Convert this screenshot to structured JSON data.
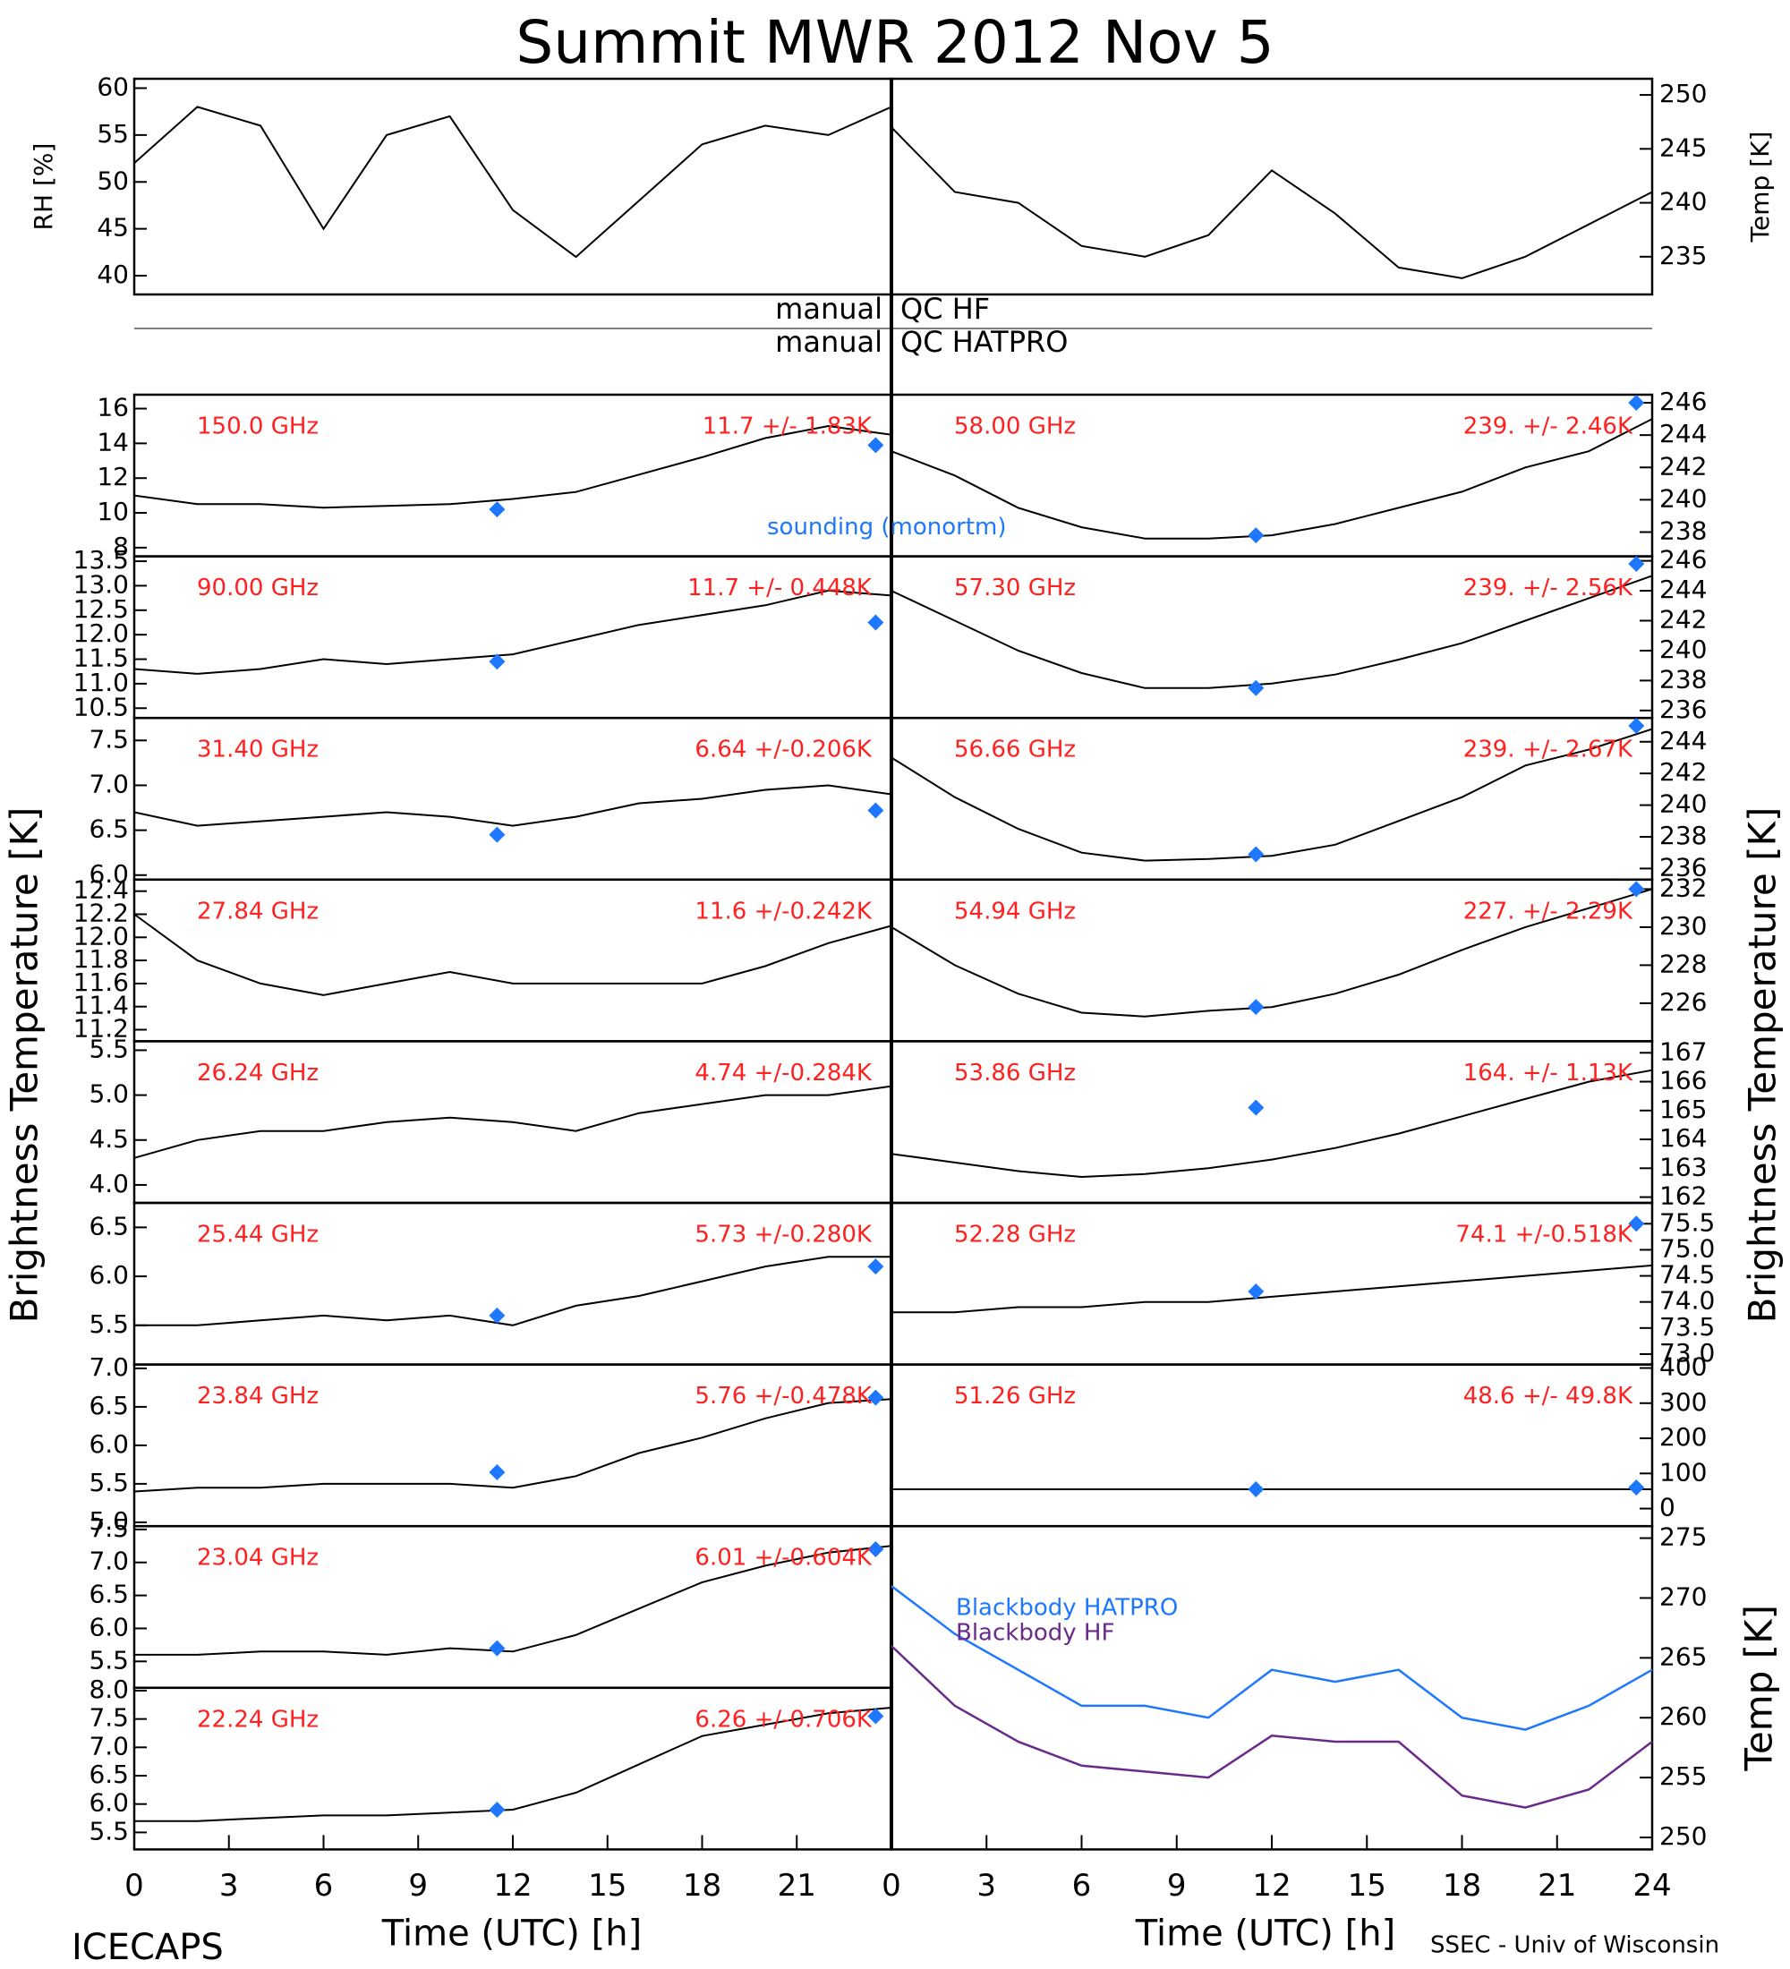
{
  "title": "Summit MWR 2012 Nov  5",
  "qc": {
    "left": [
      "manual",
      "manual"
    ],
    "right": [
      "QC HF",
      "QC HATPRO"
    ]
  },
  "y_label_left": "Brightness Temperature [K]",
  "y_label_right": "Brightness Temperature [K]",
  "footer_left": "ICECAPS",
  "footer_right": "SSEC - Univ of Wisconsin",
  "label_color": "#ff2020",
  "sounding_color": "#1e78ff",
  "chart_data": [
    {
      "type": "line",
      "ylabel": "RH [%]",
      "xlim": [
        0,
        24
      ],
      "ylim": [
        38,
        61
      ],
      "yticks": [
        40,
        45,
        50,
        55,
        60
      ],
      "x": [
        0,
        2,
        4,
        6,
        8,
        10,
        12,
        14,
        16,
        18,
        20,
        22,
        24
      ],
      "series": [
        {
          "color": "#000000",
          "values": [
            52,
            58,
            56,
            45,
            55,
            57,
            47,
            42,
            48,
            54,
            56,
            55,
            58
          ]
        }
      ]
    },
    {
      "type": "line",
      "ylabel": "Temp [K]",
      "xlim": [
        0,
        24
      ],
      "ylim": [
        231.5,
        251.5
      ],
      "yticks": [
        235,
        240,
        245,
        250
      ],
      "x": [
        0,
        2,
        4,
        6,
        8,
        10,
        12,
        14,
        16,
        18,
        20,
        22,
        24
      ],
      "series": [
        {
          "color": "#000000",
          "values": [
            247,
            241,
            240,
            236,
            235,
            237,
            243,
            239,
            234,
            233,
            235,
            238,
            241
          ]
        }
      ]
    },
    {
      "type": "line",
      "label": "150.0 GHz",
      "stats": "11.7 +/- 1.83K",
      "note": "sounding (monortm)",
      "xlim": [
        0,
        24
      ],
      "ylim": [
        7.5,
        16.8
      ],
      "yticks": [
        8,
        10,
        12,
        14,
        16
      ],
      "x": [
        0,
        2,
        4,
        6,
        8,
        10,
        12,
        14,
        16,
        18,
        20,
        22,
        24
      ],
      "series": [
        {
          "color": "#000000",
          "values": [
            11,
            10.5,
            10.5,
            10.3,
            10.4,
            10.5,
            10.8,
            11.2,
            12.2,
            13.2,
            14.3,
            15.0,
            14.5
          ]
        }
      ],
      "sounding": {
        "x": [
          11.5,
          23.5
        ],
        "values": [
          10.2,
          13.9
        ]
      }
    },
    {
      "type": "line",
      "label": "90.00 GHz",
      "stats": "11.7 +/- 0.448K",
      "xlim": [
        0,
        24
      ],
      "ylim": [
        10.3,
        13.6
      ],
      "yticks": [
        {
          "value": 10.5,
          "label": "10.5"
        },
        {
          "value": 11,
          "label": "11.0"
        },
        {
          "value": 11.5,
          "label": "11.5"
        },
        {
          "value": 12,
          "label": "12.0"
        },
        {
          "value": 12.5,
          "label": "12.5"
        },
        {
          "value": 13,
          "label": "13.0"
        },
        {
          "value": 13.5,
          "label": "13.5"
        }
      ],
      "x": [
        0,
        2,
        4,
        6,
        8,
        10,
        12,
        14,
        16,
        18,
        20,
        22,
        24
      ],
      "series": [
        {
          "color": "#000000",
          "values": [
            11.3,
            11.2,
            11.3,
            11.5,
            11.4,
            11.5,
            11.6,
            11.9,
            12.2,
            12.4,
            12.6,
            12.9,
            12.8
          ]
        }
      ],
      "sounding": {
        "x": [
          11.5,
          23.5
        ],
        "values": [
          11.45,
          12.25
        ]
      }
    },
    {
      "type": "line",
      "label": "31.40 GHz",
      "stats": "6.64 +/-0.206K",
      "xlim": [
        0,
        24
      ],
      "ylim": [
        5.95,
        7.75
      ],
      "yticks": [
        {
          "value": 6,
          "label": "6.0"
        },
        6.5,
        {
          "value": 7,
          "label": "7.0"
        },
        7.5
      ],
      "x": [
        0,
        2,
        4,
        6,
        8,
        10,
        12,
        14,
        16,
        18,
        20,
        22,
        24
      ],
      "series": [
        {
          "color": "#000000",
          "values": [
            6.7,
            6.55,
            6.6,
            6.65,
            6.7,
            6.65,
            6.55,
            6.65,
            6.8,
            6.85,
            6.95,
            7.0,
            6.9
          ]
        }
      ],
      "sounding": {
        "x": [
          11.5,
          23.5
        ],
        "values": [
          6.45,
          6.72
        ]
      }
    },
    {
      "type": "line",
      "label": "27.84 GHz",
      "stats": "11.6 +/-0.242K",
      "xlim": [
        0,
        24
      ],
      "ylim": [
        11.1,
        12.5
      ],
      "yticks": [
        11.2,
        11.4,
        11.6,
        11.8,
        {
          "value": 12,
          "label": "12.0"
        },
        12.2,
        12.4
      ],
      "x": [
        0,
        2,
        4,
        6,
        8,
        10,
        12,
        14,
        16,
        18,
        20,
        22,
        24
      ],
      "series": [
        {
          "color": "#000000",
          "values": [
            12.2,
            11.8,
            11.6,
            11.5,
            11.6,
            11.7,
            11.6,
            11.6,
            11.6,
            11.6,
            11.75,
            11.95,
            12.1
          ]
        }
      ]
    },
    {
      "type": "line",
      "label": "26.24 GHz",
      "stats": "4.74 +/-0.284K",
      "xlim": [
        0,
        24
      ],
      "ylim": [
        3.8,
        5.6
      ],
      "yticks": [
        {
          "value": 4,
          "label": "4.0"
        },
        4.5,
        {
          "value": 5,
          "label": "5.0"
        },
        5.5
      ],
      "x": [
        0,
        2,
        4,
        6,
        8,
        10,
        12,
        14,
        16,
        18,
        20,
        22,
        24
      ],
      "series": [
        {
          "color": "#000000",
          "values": [
            4.3,
            4.5,
            4.6,
            4.6,
            4.7,
            4.75,
            4.7,
            4.6,
            4.8,
            4.9,
            5.0,
            5.0,
            5.1
          ]
        }
      ]
    },
    {
      "type": "line",
      "label": "25.44 GHz",
      "stats": "5.73 +/-0.280K",
      "xlim": [
        0,
        24
      ],
      "ylim": [
        5.1,
        6.75
      ],
      "yticks": [
        5.5,
        {
          "value": 6,
          "label": "6.0"
        },
        6.5
      ],
      "x": [
        0,
        2,
        4,
        6,
        8,
        10,
        12,
        14,
        16,
        18,
        20,
        22,
        24
      ],
      "series": [
        {
          "color": "#000000",
          "values": [
            5.5,
            5.5,
            5.55,
            5.6,
            5.55,
            5.6,
            5.5,
            5.7,
            5.8,
            5.95,
            6.1,
            6.2,
            6.2
          ]
        }
      ],
      "sounding": {
        "x": [
          11.5,
          23.5
        ],
        "values": [
          5.6,
          6.1
        ]
      }
    },
    {
      "type": "line",
      "label": "23.84 GHz",
      "stats": "5.76 +/-0.478K",
      "xlim": [
        0,
        24
      ],
      "ylim": [
        4.95,
        7.05
      ],
      "yticks": [
        {
          "value": 5,
          "label": "5.0"
        },
        5.5,
        {
          "value": 6,
          "label": "6.0"
        },
        6.5,
        {
          "value": 7,
          "label": "7.0"
        }
      ],
      "x": [
        0,
        2,
        4,
        6,
        8,
        10,
        12,
        14,
        16,
        18,
        20,
        22,
        24
      ],
      "series": [
        {
          "color": "#000000",
          "values": [
            5.4,
            5.45,
            5.45,
            5.5,
            5.5,
            5.5,
            5.45,
            5.6,
            5.9,
            6.1,
            6.35,
            6.55,
            6.6
          ]
        }
      ],
      "sounding": {
        "x": [
          11.5,
          23.5
        ],
        "values": [
          5.65,
          6.62
        ]
      }
    },
    {
      "type": "line",
      "label": "23.04 GHz",
      "stats": "6.01 +/-0.604K",
      "xlim": [
        0,
        24
      ],
      "ylim": [
        5.1,
        7.55
      ],
      "yticks": [
        5.5,
        {
          "value": 6,
          "label": "6.0"
        },
        6.5,
        {
          "value": 7,
          "label": "7.0"
        },
        7.5
      ],
      "x": [
        0,
        2,
        4,
        6,
        8,
        10,
        12,
        14,
        16,
        18,
        20,
        22,
        24
      ],
      "series": [
        {
          "color": "#000000",
          "values": [
            5.6,
            5.6,
            5.65,
            5.65,
            5.6,
            5.7,
            5.65,
            5.9,
            6.3,
            6.7,
            6.95,
            7.15,
            7.25
          ]
        }
      ],
      "sounding": {
        "x": [
          11.5,
          23.5
        ],
        "values": [
          5.7,
          7.2
        ]
      }
    },
    {
      "type": "line",
      "label": "22.24 GHz",
      "stats": "6.26 +/-0.706K",
      "xlim": [
        0,
        24
      ],
      "ylim": [
        5.2,
        8.05
      ],
      "yticks": [
        5.5,
        {
          "value": 6,
          "label": "6.0"
        },
        6.5,
        {
          "value": 7,
          "label": "7.0"
        },
        7.5,
        {
          "value": 8,
          "label": "8.0"
        }
      ],
      "xticks": [
        0,
        3,
        6,
        9,
        12,
        15,
        18,
        21
      ],
      "xlabel": "Time (UTC) [h]",
      "x": [
        0,
        2,
        4,
        6,
        8,
        10,
        12,
        14,
        16,
        18,
        20,
        22,
        24
      ],
      "series": [
        {
          "color": "#000000",
          "values": [
            5.7,
            5.7,
            5.75,
            5.8,
            5.8,
            5.85,
            5.9,
            6.2,
            6.7,
            7.2,
            7.4,
            7.6,
            7.7
          ]
        }
      ],
      "sounding": {
        "x": [
          11.5,
          23.5
        ],
        "values": [
          5.9,
          7.55
        ]
      }
    },
    {
      "type": "line",
      "label": "58.00 GHz",
      "stats": "239. +/- 2.46K",
      "xlim": [
        0,
        24
      ],
      "ylim": [
        236.5,
        246.5
      ],
      "yticks": [
        238,
        240,
        242,
        244,
        246
      ],
      "x": [
        0,
        2,
        4,
        6,
        8,
        10,
        12,
        14,
        16,
        18,
        20,
        22,
        24
      ],
      "series": [
        {
          "color": "#000000",
          "values": [
            243,
            241.5,
            239.5,
            238.3,
            237.6,
            237.6,
            237.8,
            238.5,
            239.5,
            240.5,
            242,
            243,
            245
          ]
        }
      ],
      "sounding": {
        "x": [
          11.5,
          23.5
        ],
        "values": [
          237.8,
          246
        ]
      }
    },
    {
      "type": "line",
      "label": "57.30 GHz",
      "stats": "239. +/- 2.56K",
      "xlim": [
        0,
        24
      ],
      "ylim": [
        235.5,
        246.3
      ],
      "yticks": [
        236,
        238,
        240,
        242,
        244,
        246
      ],
      "x": [
        0,
        2,
        4,
        6,
        8,
        10,
        12,
        14,
        16,
        18,
        20,
        22,
        24
      ],
      "series": [
        {
          "color": "#000000",
          "values": [
            244,
            242,
            240,
            238.5,
            237.5,
            237.5,
            237.8,
            238.4,
            239.4,
            240.5,
            242,
            243.5,
            245
          ]
        }
      ],
      "sounding": {
        "x": [
          11.5,
          23.5
        ],
        "values": [
          237.5,
          245.8
        ]
      }
    },
    {
      "type": "line",
      "label": "56.66 GHz",
      "stats": "239. +/- 2.67K",
      "xlim": [
        0,
        24
      ],
      "ylim": [
        235.3,
        245.5
      ],
      "yticks": [
        236,
        238,
        240,
        242,
        244
      ],
      "x": [
        0,
        2,
        4,
        6,
        8,
        10,
        12,
        14,
        16,
        18,
        20,
        22,
        24
      ],
      "series": [
        {
          "color": "#000000",
          "values": [
            243,
            240.5,
            238.5,
            237,
            236.5,
            236.6,
            236.8,
            237.5,
            239,
            240.5,
            242.5,
            243.5,
            244.8
          ]
        }
      ],
      "sounding": {
        "x": [
          11.5,
          23.5
        ],
        "values": [
          236.9,
          245
        ]
      }
    },
    {
      "type": "line",
      "label": "54.94 GHz",
      "stats": "227. +/- 2.29K",
      "xlim": [
        0,
        24
      ],
      "ylim": [
        224,
        232.5
      ],
      "yticks": [
        226,
        228,
        230,
        232
      ],
      "x": [
        0,
        2,
        4,
        6,
        8,
        10,
        12,
        14,
        16,
        18,
        20,
        22,
        24
      ],
      "series": [
        {
          "color": "#000000",
          "values": [
            230,
            228,
            226.5,
            225.5,
            225.3,
            225.6,
            225.8,
            226.5,
            227.5,
            228.8,
            230,
            231,
            232
          ]
        }
      ],
      "sounding": {
        "x": [
          11.5,
          23.5
        ],
        "values": [
          225.8,
          232
        ]
      }
    },
    {
      "type": "line",
      "label": "53.86 GHz",
      "stats": "164. +/- 1.13K",
      "xlim": [
        0,
        24
      ],
      "ylim": [
        161.8,
        167.4
      ],
      "yticks": [
        162,
        163,
        164,
        165,
        166,
        167
      ],
      "x": [
        0,
        2,
        4,
        6,
        8,
        10,
        12,
        14,
        16,
        18,
        20,
        22,
        24
      ],
      "series": [
        {
          "color": "#000000",
          "values": [
            163.5,
            163.2,
            162.9,
            162.7,
            162.8,
            163,
            163.3,
            163.7,
            164.2,
            164.8,
            165.4,
            166,
            166.4
          ]
        }
      ],
      "sounding": {
        "x": [
          11.5
        ],
        "values": [
          165.1
        ]
      }
    },
    {
      "type": "line",
      "label": "52.28 GHz",
      "stats": "74.1 +/-0.518K",
      "xlim": [
        0,
        24
      ],
      "ylim": [
        72.8,
        75.9
      ],
      "yticks": [
        {
          "value": 73,
          "label": "73.0"
        },
        73.5,
        {
          "value": 74,
          "label": "74.0"
        },
        74.5,
        {
          "value": 75,
          "label": "75.0"
        },
        75.5
      ],
      "x": [
        0,
        2,
        4,
        6,
        8,
        10,
        12,
        14,
        16,
        18,
        20,
        22,
        24
      ],
      "series": [
        {
          "color": "#000000",
          "values": [
            73.8,
            73.8,
            73.9,
            73.9,
            74,
            74,
            74.1,
            74.2,
            74.3,
            74.4,
            74.5,
            74.6,
            74.7
          ]
        }
      ],
      "sounding": {
        "x": [
          11.5,
          23.5
        ],
        "values": [
          74.2,
          75.5
        ]
      }
    },
    {
      "type": "line",
      "label": "51.26 GHz",
      "stats": "48.6 +/- 49.8K",
      "xlim": [
        0,
        24
      ],
      "ylim": [
        -50,
        410
      ],
      "yticks": [
        0,
        100,
        200,
        300,
        400
      ],
      "x": [
        0,
        2,
        4,
        6,
        8,
        10,
        12,
        14,
        16,
        18,
        20,
        22,
        24
      ],
      "series": [
        {
          "color": "#000000",
          "values": [
            55,
            55,
            55,
            55,
            55,
            55,
            55,
            55,
            55,
            55,
            55,
            55,
            55
          ]
        }
      ],
      "sounding": {
        "x": [
          11.5,
          23.5
        ],
        "values": [
          55,
          60
        ]
      }
    },
    {
      "type": "line",
      "ylabel": "Temp [K]",
      "xlim": [
        0,
        24
      ],
      "ylim": [
        249,
        276
      ],
      "yticks": [
        250,
        255,
        260,
        265,
        270,
        275
      ],
      "xticks": [
        0,
        3,
        6,
        9,
        12,
        15,
        18,
        21,
        24
      ],
      "xlabel": "Time (UTC) [h]",
      "x": [
        0,
        2,
        4,
        6,
        8,
        10,
        12,
        14,
        16,
        18,
        20,
        22,
        24
      ],
      "series": [
        {
          "name": "Blackbody HATPRO",
          "color": "#1e78ff",
          "values": [
            271,
            267,
            264,
            261,
            261,
            260,
            264,
            263,
            264,
            260,
            259,
            261,
            264
          ]
        },
        {
          "name": "Blackbody HF",
          "color": "#6a2a8a",
          "values": [
            266,
            261,
            258,
            256,
            255.5,
            255,
            258.5,
            258,
            258,
            253.5,
            252.5,
            254,
            258
          ]
        }
      ]
    }
  ]
}
